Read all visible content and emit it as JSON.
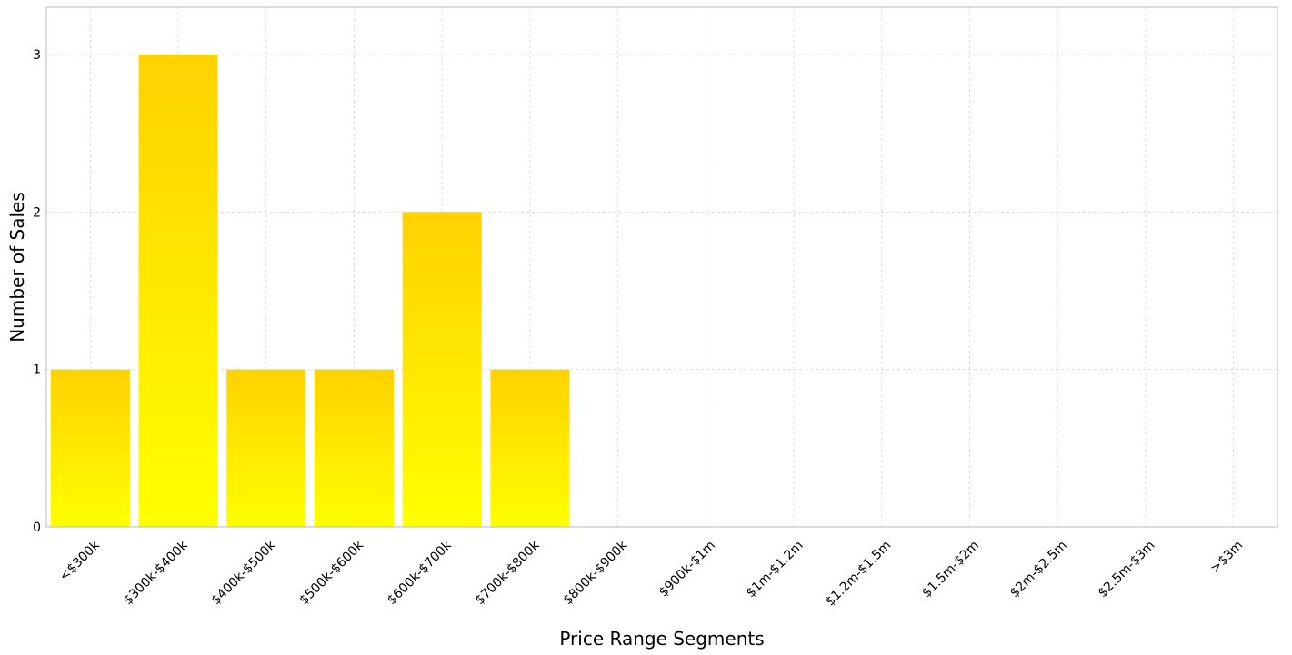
{
  "chart_data": {
    "type": "bar",
    "title": "",
    "xlabel": "Price Range Segments",
    "ylabel": "Number of Sales",
    "categories": [
      "<$300k",
      "$300k-$400k",
      "$400k-$500k",
      "$500k-$600k",
      "$600k-$700k",
      "$700k-$800k",
      "$800k-$900k",
      "$900k-$1m",
      "$1m-$1.2m",
      "$1.2m-$1.5m",
      "$1.5m-$2m",
      "$2m-$2.5m",
      "$2.5m-$3m",
      ">$3m"
    ],
    "values": [
      1,
      3,
      1,
      1,
      2,
      1,
      0,
      0,
      0,
      0,
      0,
      0,
      0,
      0
    ],
    "ylim": [
      0,
      3.3
    ],
    "yticks": [
      "0",
      "1",
      "2",
      "3"
    ],
    "grid": true,
    "legend": "none",
    "colors": {
      "bar_top": "#FFD200",
      "bar_bottom": "#FFFF00",
      "grid": "#DDDDDD",
      "frame": "#BBBBBB"
    }
  }
}
